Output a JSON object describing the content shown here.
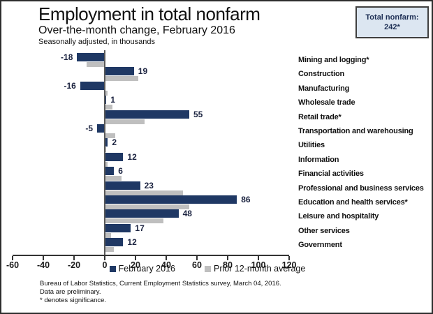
{
  "header": {
    "title": "Employment in total nonfarm",
    "subtitle": "Over-the-month change, February 2016",
    "note": "Seasonally adjusted, in thousands",
    "total_box": {
      "label": "Total nonfarm:",
      "value": "242*"
    }
  },
  "chart_data": {
    "type": "bar",
    "orientation": "horizontal",
    "title": "Employment in total nonfarm",
    "subtitle": "Over-the-month change, February 2016",
    "units": "thousands, seasonally adjusted",
    "categories": [
      "Mining and logging*",
      "Construction",
      "Manufacturing",
      "Wholesale trade",
      "Retail trade*",
      "Transportation and warehousing",
      "Utilities",
      "Information",
      "Financial activities",
      "Professional and business services",
      "Education and health services*",
      "Leisure and hospitality",
      "Other services",
      "Government"
    ],
    "series": [
      {
        "name": "February 2016",
        "color": "#1F3864",
        "values": [
          -18,
          19,
          -16,
          1,
          55,
          -5,
          2,
          12,
          6,
          23,
          86,
          48,
          17,
          12
        ],
        "data_labels": true
      },
      {
        "name": "Prior 12-month average",
        "color": "#BFBFBF",
        "values": [
          -12,
          22,
          2,
          5,
          26,
          7,
          1,
          2,
          11,
          51,
          55,
          38,
          4,
          6
        ],
        "data_labels": false
      }
    ],
    "xlim": [
      -60,
      120
    ],
    "xticks": [
      -60,
      -40,
      -20,
      0,
      20,
      40,
      60,
      80,
      100,
      120
    ],
    "grid": false,
    "legend_position": "bottom"
  },
  "colors": {
    "bar_primary": "#1F3864",
    "bar_secondary": "#BFBFBF",
    "total_box_fill": "#DCE6F1"
  },
  "footer": {
    "lines": [
      "Bureau of Labor Statistics, Current Employment Statistics survey, March 04, 2016.",
      "Data are preliminary.",
      "* denotes significance."
    ]
  }
}
